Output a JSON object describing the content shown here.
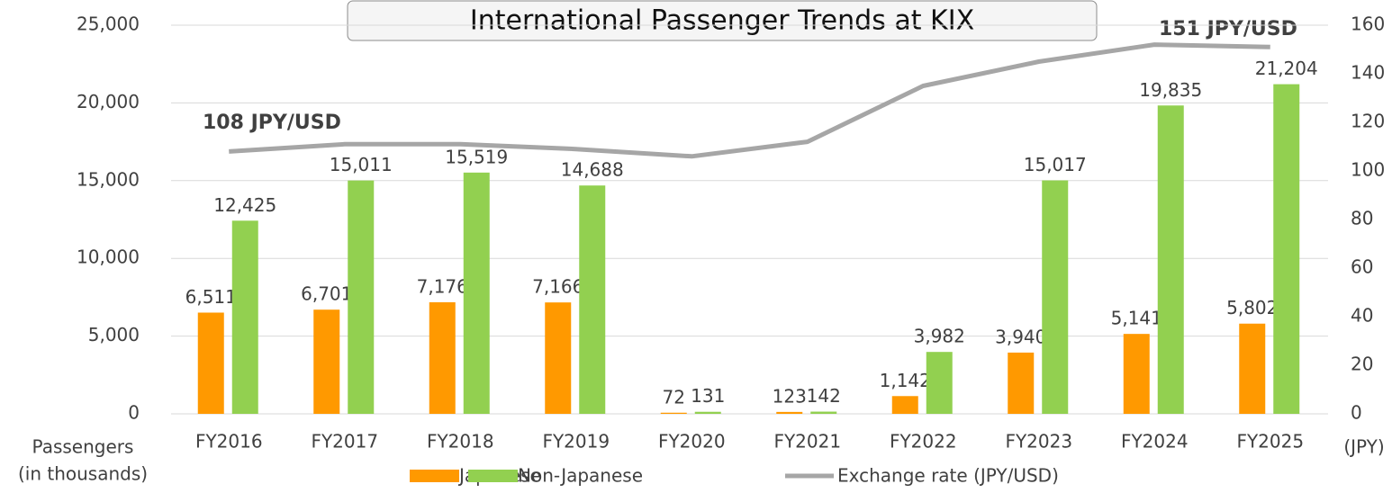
{
  "chart_data": {
    "type": "bar",
    "title": "International Passenger Trends at KIX",
    "y_label": [
      "Passengers",
      "(in thousands)"
    ],
    "y2_label": "(JPY)",
    "categories": [
      "FY2016",
      "FY2017",
      "FY2018",
      "FY2019",
      "FY2020",
      "FY2021",
      "FY2022",
      "FY2023",
      "FY2024",
      "FY2025"
    ],
    "series": [
      {
        "name": "Japanese",
        "type": "bar",
        "color": "#ff9900",
        "values": [
          6511,
          6701,
          7176,
          7166,
          72,
          123,
          1142,
          3940,
          5141,
          5802
        ],
        "value_labels": [
          "6,511",
          "6,701",
          "7,176",
          "7,166",
          "72",
          "123",
          "1,142",
          "3,940",
          "5,141",
          "5,802"
        ]
      },
      {
        "name": "Non-Japanese",
        "type": "bar",
        "color": "#92d050",
        "values": [
          12425,
          15011,
          15519,
          14688,
          131,
          142,
          3982,
          15017,
          19835,
          21204
        ],
        "value_labels": [
          "12,425",
          "15,011",
          "15,519",
          "14,688",
          "131",
          "142",
          "3,982",
          "15,017",
          "19,835",
          "21,204"
        ]
      },
      {
        "name": "Exchange rate (JPY/USD)",
        "type": "line",
        "axis": "y2",
        "color": "#a6a6a6",
        "values": [
          108,
          111,
          111,
          109,
          106,
          112,
          135,
          145,
          152,
          151
        ]
      }
    ],
    "annotations": [
      "108 JPY/USD",
      "151 JPY/USD"
    ],
    "ylim": [
      0,
      25000
    ],
    "yticks": [
      {
        "value": 0,
        "label": "0"
      },
      {
        "value": 5000,
        "label": "5,000"
      },
      {
        "value": 10000,
        "label": "10,000"
      },
      {
        "value": 15000,
        "label": "15,000"
      },
      {
        "value": 20000,
        "label": "20,000"
      },
      {
        "value": 25000,
        "label": "25,000"
      }
    ],
    "y2lim": [
      0,
      160
    ],
    "y2ticks": [
      0,
      20,
      40,
      60,
      80,
      100,
      120,
      140,
      160
    ],
    "grid": true,
    "legend": "bottom"
  }
}
